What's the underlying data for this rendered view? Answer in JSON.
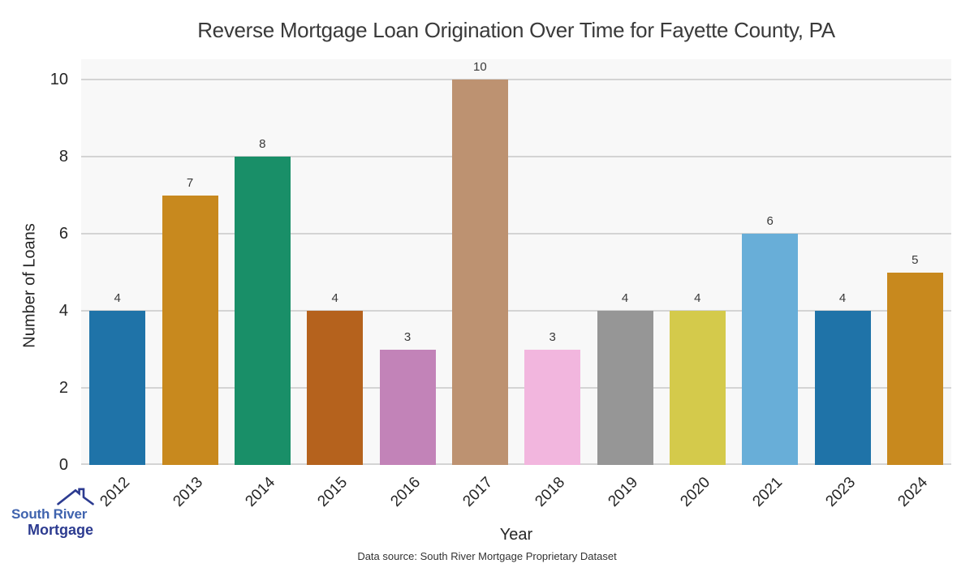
{
  "chart_data": {
    "type": "bar",
    "title": "Reverse Mortgage Loan Origination Over Time for Fayette County, PA",
    "xlabel": "Year",
    "ylabel": "Number of Loans",
    "categories": [
      "2012",
      "2013",
      "2014",
      "2015",
      "2016",
      "2017",
      "2018",
      "2019",
      "2020",
      "2021",
      "2023",
      "2024"
    ],
    "values": [
      4,
      7,
      8,
      4,
      3,
      10,
      3,
      4,
      4,
      6,
      4,
      5
    ],
    "bar_colors": [
      "#1f73a8",
      "#c8891e",
      "#198f68",
      "#b5621d",
      "#c283b8",
      "#bd9271",
      "#f2b6de",
      "#969696",
      "#d4ca4b",
      "#68aed8",
      "#1f73a8",
      "#c8891e"
    ],
    "yticks": [
      0,
      2,
      4,
      6,
      8,
      10
    ],
    "ylim": [
      0,
      10.53
    ],
    "grid": true,
    "legend_position": "none",
    "plot_background": "#f8f8f8",
    "gridline_color": "#d4d4d4"
  },
  "footer": {
    "source_note": "Data source: South River Mortgage Proprietary Dataset"
  },
  "logo": {
    "line1": "South River",
    "line2": "Mortgage",
    "text_color_primary": "#3f63ae",
    "text_color_secondary": "#2c3b90",
    "roof_icon": "house-roof-icon"
  }
}
